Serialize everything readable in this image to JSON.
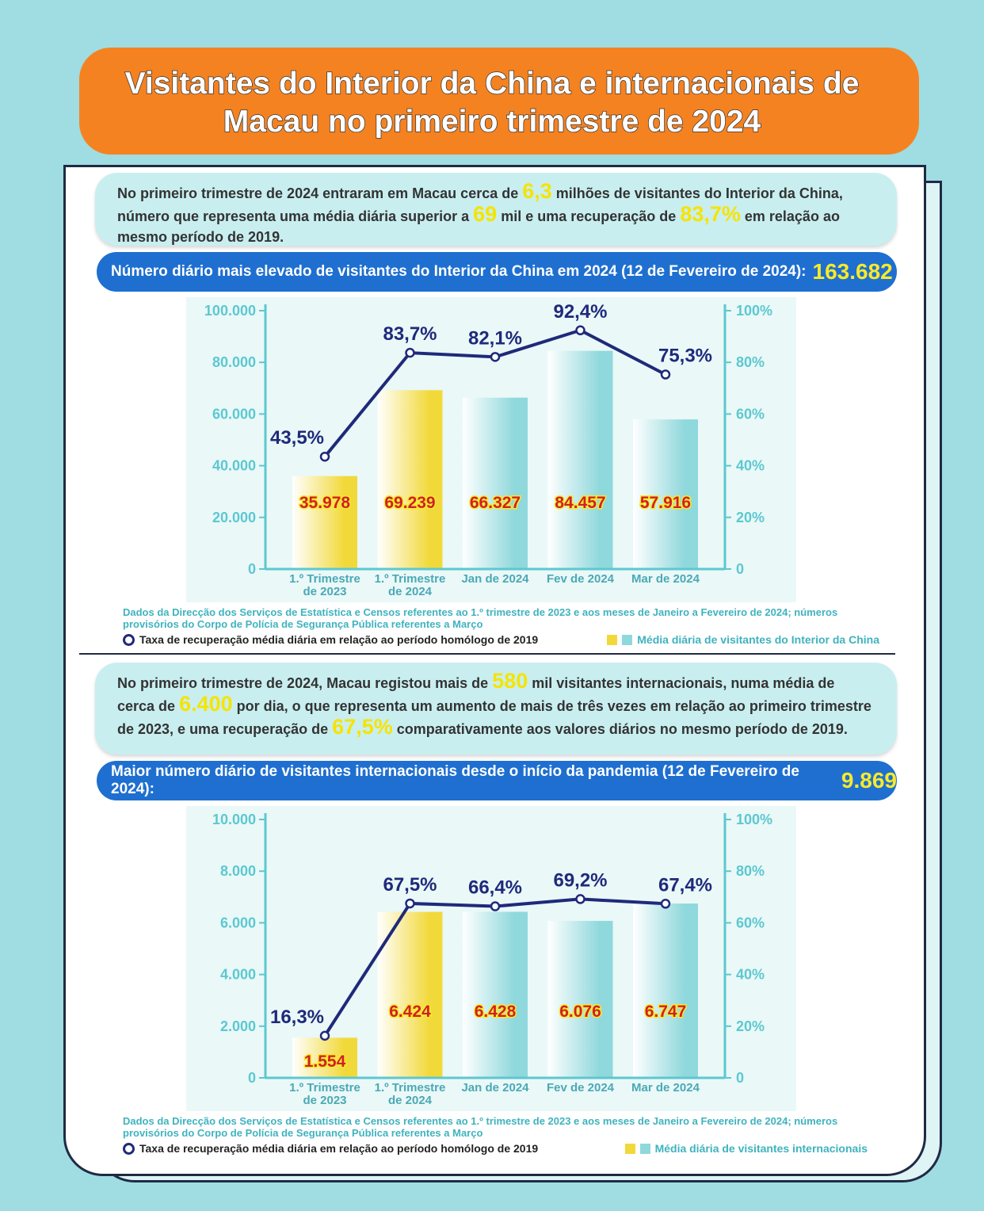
{
  "header": {
    "title": "Visitantes do Interior da China e internacionais de Macau no primeiro trimestre de 2024"
  },
  "sections": [
    {
      "paragraph": [
        "No primeiro trimestre de 2024 entraram em Macau cerca de ",
        "6,3",
        " milhões de visitantes do Interior da China, número que representa uma média diária superior a ",
        "69",
        " mil e uma recuperação de ",
        "83,7%",
        " em relação ao mesmo período de 2019."
      ],
      "headline": "Número diário mais elevado de visitantes do Interior da China em 2024 (12 de Fevereiro de 2024):",
      "headline_value": "163.682"
    },
    {
      "paragraph": [
        "No primeiro trimestre de 2024, Macau registou mais de ",
        "580",
        " mil visitantes internacionais, numa média de cerca de ",
        "6.400",
        " por dia, o que representa um aumento de mais de três vezes em relação ao primeiro trimestre de 2023, e uma recuperação de ",
        "67,5%",
        " comparativamente aos valores diários no mesmo período de 2019."
      ],
      "headline": "Maior número diário de visitantes internacionais desde o início da pandemia (12 de Fevereiro de 2024):",
      "headline_value": "9.869"
    }
  ],
  "chart_data": [
    {
      "type": "bar",
      "categories": [
        "1.º Trimestre de 2023",
        "1.º Trimestre de 2024",
        "Jan de 2024",
        "Fev de 2024",
        "Mar de 2024"
      ],
      "series": [
        {
          "name": "Média diária de visitantes do Interior da China",
          "type": "bar",
          "colors": [
            "#f2d93a",
            "#f2d93a",
            "#8fd8dc",
            "#8fd8dc",
            "#8fd8dc"
          ],
          "values": [
            35978,
            69239,
            66327,
            84457,
            57916
          ],
          "value_labels": [
            "35.978",
            "69.239",
            "66.327",
            "84.457",
            "57.916"
          ]
        },
        {
          "name": "Taxa de recuperação média diária em relação ao período homólogo de 2019",
          "type": "line",
          "axis": "y2",
          "color": "#1f2a7a",
          "values": [
            43.5,
            83.7,
            82.1,
            92.4,
            75.3
          ],
          "value_labels": [
            "43,5%",
            "83,7%",
            "82,1%",
            "92,4%",
            "75,3%"
          ]
        }
      ],
      "ylim": [
        0,
        100000
      ],
      "yticks": [
        0,
        {
          "value": 20000,
          "label": "20.000"
        },
        {
          "value": 40000,
          "label": "40.000"
        },
        {
          "value": 60000,
          "label": "60.000"
        },
        {
          "value": 80000,
          "label": "80.000"
        },
        {
          "value": 100000,
          "label": "100.000"
        }
      ],
      "y2lim": [
        0,
        100
      ],
      "y2ticks": [
        0,
        {
          "value": 20,
          "label": "20%"
        },
        {
          "value": 40,
          "label": "40%"
        },
        {
          "value": 60,
          "label": "60%"
        },
        {
          "value": 80,
          "label": "80%"
        },
        {
          "value": 100,
          "label": "100%"
        }
      ],
      "note": "Dados da Direcção dos Serviços de Estatística e Censos referentes ao 1.º trimestre de 2023 e aos meses de Janeiro a Fevereiro de 2024; números provisórios do Corpo de Polícia de Segurança Pública referentes a Março"
    },
    {
      "type": "bar",
      "categories": [
        "1.º Trimestre de 2023",
        "1.º Trimestre de 2024",
        "Jan de 2024",
        "Fev de 2024",
        "Mar de 2024"
      ],
      "series": [
        {
          "name": "Média diária de visitantes internacionais",
          "type": "bar",
          "colors": [
            "#f2d93a",
            "#f2d93a",
            "#8fd8dc",
            "#8fd8dc",
            "#8fd8dc"
          ],
          "values": [
            1554,
            6424,
            6428,
            6076,
            6747
          ],
          "value_labels": [
            "1.554",
            "6.424",
            "6.428",
            "6.076",
            "6.747"
          ]
        },
        {
          "name": "Taxa de recuperação média diária em relação ao período homólogo de 2019",
          "type": "line",
          "axis": "y2",
          "color": "#1f2a7a",
          "values": [
            16.3,
            67.5,
            66.4,
            69.2,
            67.4
          ],
          "value_labels": [
            "16,3%",
            "67,5%",
            "66,4%",
            "69,2%",
            "67,4%"
          ]
        }
      ],
      "ylim": [
        0,
        10000
      ],
      "yticks": [
        0,
        {
          "value": 2000,
          "label": "2.000"
        },
        {
          "value": 4000,
          "label": "4.000"
        },
        {
          "value": 6000,
          "label": "6.000"
        },
        {
          "value": 8000,
          "label": "8.000"
        },
        {
          "value": 10000,
          "label": "10.000"
        }
      ],
      "y2lim": [
        0,
        100
      ],
      "y2ticks": [
        0,
        {
          "value": 20,
          "label": "20%"
        },
        {
          "value": 40,
          "label": "40%"
        },
        {
          "value": 60,
          "label": "60%"
        },
        {
          "value": 80,
          "label": "80%"
        },
        {
          "value": 100,
          "label": "100%"
        }
      ],
      "note": "Dados da Direcção dos Serviços de Estatística e Censos referentes ao 1.º trimestre de 2023 e aos meses de Janeiro a Fevereiro de 2024; números provisórios do Corpo de Polícia de Segurança Pública referentes a Março"
    }
  ]
}
